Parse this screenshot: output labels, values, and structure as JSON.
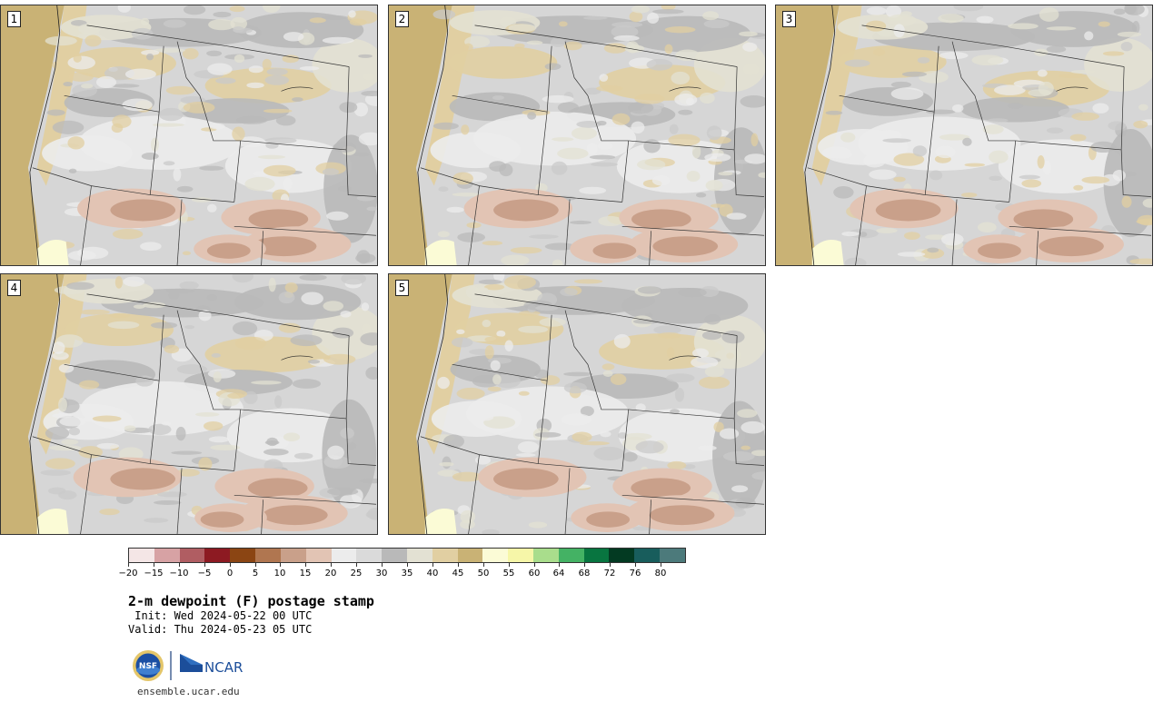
{
  "panels": [
    {
      "label": "1"
    },
    {
      "label": "2"
    },
    {
      "label": "3"
    },
    {
      "label": "4"
    },
    {
      "label": "5"
    }
  ],
  "colorbar": {
    "colors": [
      "#f4e6e6",
      "#d7a2a4",
      "#b05d62",
      "#8d1a22",
      "#8b4513",
      "#b07650",
      "#c9a08a",
      "#e2c4b4",
      "#ececec",
      "#dadada",
      "#b9b9b9",
      "#e3e1d3",
      "#e1cfa2",
      "#c9b275",
      "#fbfbd6",
      "#f6f6a8",
      "#a9dd8c",
      "#44b264",
      "#087540",
      "#033a22",
      "#185d5c",
      "#4c7a7b"
    ],
    "tick_labels": [
      "−20",
      "−15",
      "−10",
      "−5",
      "0",
      "5",
      "10",
      "15",
      "20",
      "25",
      "30",
      "35",
      "40",
      "45",
      "50",
      "55",
      "60",
      "64",
      "68",
      "72",
      "76",
      "80"
    ]
  },
  "title": "2-m dewpoint (F) postage stamp",
  "init": " Init: Wed 2024-05-22 00 UTC",
  "valid": "Valid: Thu 2024-05-23 05 UTC",
  "logo_nsf": "NSF",
  "logo_ncar": "NCAR",
  "site": "ensemble.ucar.edu"
}
